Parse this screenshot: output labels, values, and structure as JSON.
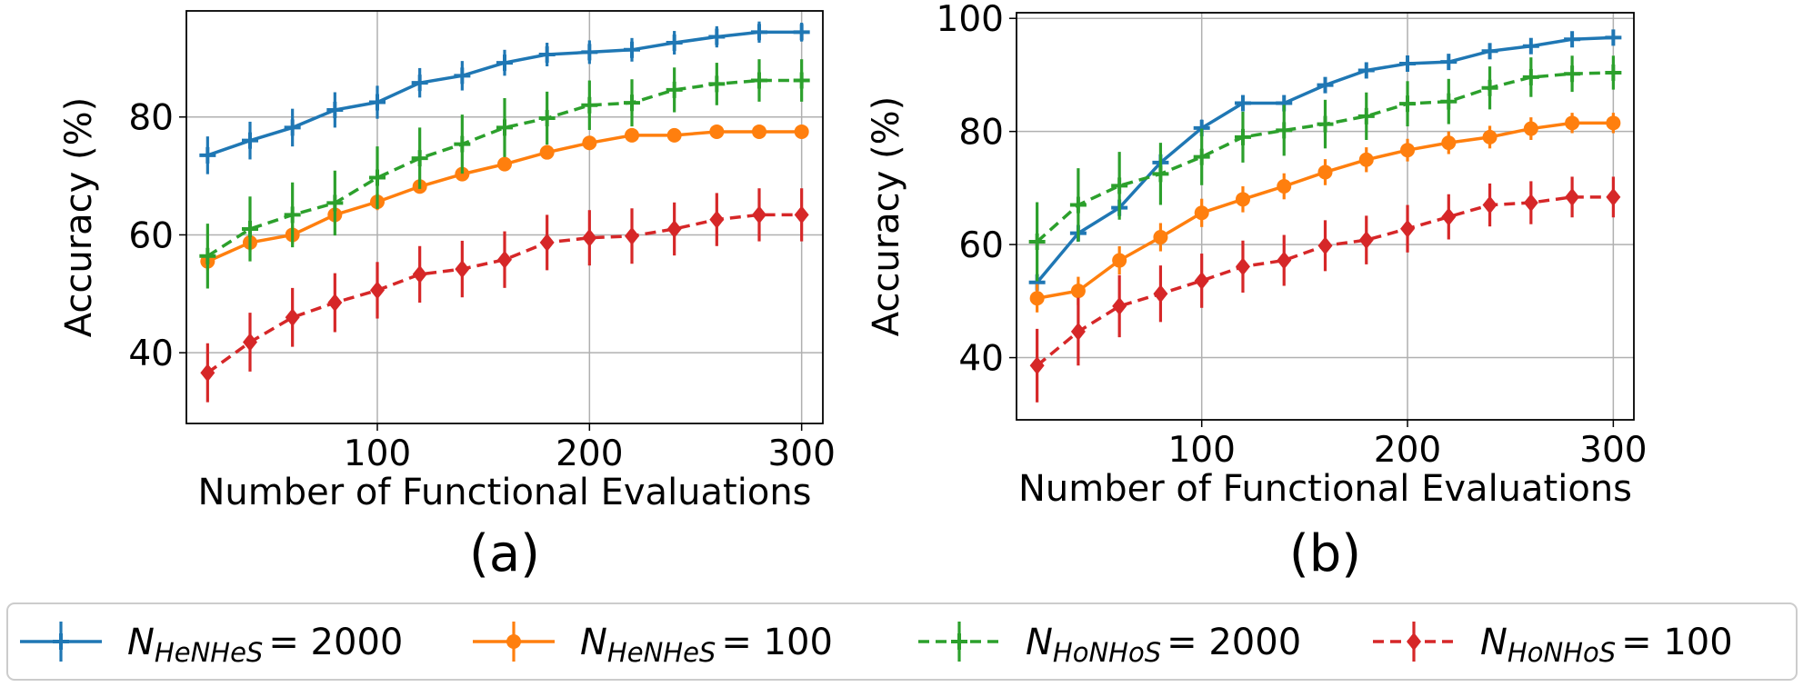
{
  "chart_data": [
    {
      "panel": "(a)",
      "type": "line",
      "xlabel": "Number of Functional Evaluations",
      "ylabel": "Accuracy (%)",
      "xlim": [
        10,
        310
      ],
      "ylim": [
        28,
        98
      ],
      "xticks": [
        100,
        200,
        300
      ],
      "yticks": [
        40,
        60,
        80
      ],
      "grid": true,
      "x": [
        20,
        40,
        60,
        80,
        100,
        120,
        140,
        160,
        180,
        200,
        220,
        240,
        260,
        280,
        300
      ],
      "series": [
        {
          "key": "he2000",
          "values": [
            73.5,
            76,
            78.2,
            81.2,
            82.5,
            85.8,
            87,
            89.2,
            90.6,
            91,
            91.4,
            92.6,
            93.6,
            94.4,
            94.4
          ],
          "errors": [
            3.2,
            3.2,
            3.2,
            3,
            2.8,
            2.5,
            2.5,
            2.2,
            2,
            2,
            2,
            2,
            1.8,
            1.8,
            1.6
          ]
        },
        {
          "key": "he100",
          "values": [
            55.5,
            58.7,
            60,
            63.4,
            65.6,
            68.2,
            70.3,
            72,
            74,
            75.6,
            76.9,
            76.9,
            77.5,
            77.5,
            77.5
          ],
          "errors": [
            1.5,
            1.5,
            1.5,
            1.4,
            1.4,
            1.2,
            1.2,
            1,
            1,
            1,
            1,
            0.8,
            0.8,
            0.8,
            0.8
          ]
        },
        {
          "key": "ho2000",
          "values": [
            56.4,
            61,
            63.4,
            65.4,
            69.7,
            73,
            75.4,
            78.2,
            79.8,
            82,
            82.4,
            84.6,
            85.6,
            86.2,
            86.2
          ],
          "errors": [
            5.5,
            5.5,
            5.5,
            5.5,
            5.3,
            5.2,
            5,
            5,
            4.5,
            4.2,
            4,
            3.8,
            3.6,
            3.6,
            3.6
          ]
        },
        {
          "key": "ho100",
          "values": [
            36.6,
            41.8,
            46,
            48.5,
            50.6,
            53.3,
            54.2,
            55.8,
            58.7,
            59.5,
            59.8,
            61,
            62.6,
            63.4,
            63.4
          ],
          "errors": [
            5,
            5,
            5,
            5,
            4.8,
            4.8,
            4.8,
            4.8,
            4.7,
            4.7,
            4.7,
            4.5,
            4.5,
            4.5,
            4.5
          ]
        }
      ]
    },
    {
      "panel": "(b)",
      "type": "line",
      "xlabel": "Number of Functional Evaluations",
      "ylabel": "Accuracy (%)",
      "xlim": [
        10,
        310
      ],
      "ylim": [
        29,
        101
      ],
      "xticks": [
        100,
        200,
        300
      ],
      "yticks": [
        40,
        60,
        80,
        100
      ],
      "grid": true,
      "x": [
        20,
        40,
        60,
        80,
        100,
        120,
        140,
        160,
        180,
        200,
        220,
        240,
        260,
        280,
        300
      ],
      "series": [
        {
          "key": "he2000",
          "values": [
            53.3,
            62,
            66.5,
            74.5,
            80.6,
            85,
            85,
            88.2,
            90.8,
            92,
            92.3,
            94.2,
            95.1,
            96.3,
            96.6
          ],
          "errors": [
            1.5,
            1.5,
            1.5,
            1.5,
            1.5,
            1.2,
            1.2,
            1.2,
            1,
            1,
            1,
            1,
            1,
            0.8,
            0.8
          ]
        },
        {
          "key": "he100",
          "values": [
            50.5,
            51.8,
            57.2,
            61.3,
            65.6,
            68,
            70.3,
            72.8,
            75,
            76.7,
            78,
            79,
            80.5,
            81.5,
            81.5
          ],
          "errors": [
            2.5,
            2.5,
            2.5,
            2.5,
            2.5,
            2.3,
            2.3,
            2.3,
            2.2,
            2,
            2,
            2,
            2,
            1.8,
            1.8
          ]
        },
        {
          "key": "ho2000",
          "values": [
            60.5,
            67,
            70.4,
            72.5,
            75.5,
            79,
            80.2,
            81.3,
            82.7,
            84.9,
            85.3,
            87.7,
            89.6,
            90.2,
            90.4
          ],
          "errors": [
            7,
            6.5,
            6,
            5.5,
            5,
            4.5,
            4.5,
            4.3,
            4.2,
            4,
            4,
            3.8,
            3.5,
            3.2,
            3
          ]
        },
        {
          "key": "ho100",
          "values": [
            38.6,
            44.6,
            49.1,
            51.3,
            53.6,
            56.1,
            57.2,
            59.8,
            60.8,
            62.8,
            64.9,
            67,
            67.4,
            68.4,
            68.4
          ],
          "errors": [
            6.5,
            6,
            5.5,
            5,
            4.8,
            4.6,
            4.5,
            4.5,
            4.3,
            4.2,
            4,
            3.8,
            3.8,
            3.6,
            3.6
          ]
        }
      ]
    }
  ],
  "legend": [
    {
      "key": "he2000",
      "symbol": "N",
      "subscript": "HeNHeS",
      "value_text": "= 2000",
      "color": "#1f77b4",
      "dash": "solid",
      "marker": "plus"
    },
    {
      "key": "he100",
      "symbol": "N",
      "subscript": "HeNHeS",
      "value_text": "= 100",
      "color": "#ff7f0e",
      "dash": "solid",
      "marker": "circle"
    },
    {
      "key": "ho2000",
      "symbol": "N",
      "subscript": "HoNHoS",
      "value_text": "= 2000",
      "color": "#2ca02c",
      "dash": "dashed",
      "marker": "plus"
    },
    {
      "key": "ho100",
      "symbol": "N",
      "subscript": "HoNHoS",
      "value_text": "= 100",
      "color": "#d62728",
      "dash": "dashed",
      "marker": "diamond"
    }
  ]
}
